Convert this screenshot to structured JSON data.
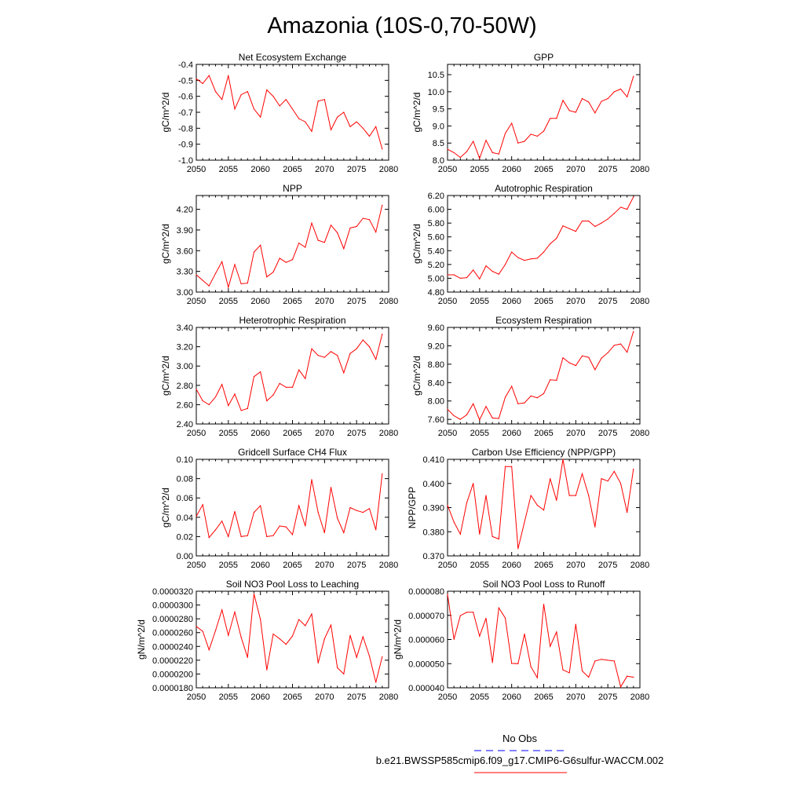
{
  "title": "Amazonia (10S-0,70-50W)",
  "colors": {
    "model_line": "#ff0000",
    "obs_line": "#0000ff",
    "axis": "#000000"
  },
  "legend": {
    "obs_label": "No Obs",
    "model_label": "b.e21.BWSSP585cmip6.f09_g17.CMIP6-G6sulfur-WACCM.002"
  },
  "chart_data": [
    {
      "type": "line",
      "title": "Net Ecosystem Exchange",
      "ylabel": "gC/m^2/d",
      "xlim": [
        2050,
        2080
      ],
      "ylim": [
        -1.0,
        -0.4
      ],
      "xticks": [
        2050,
        2055,
        2060,
        2065,
        2070,
        2075,
        2080
      ],
      "xtick_labels": [
        "2050",
        "2055",
        "2060",
        "2065",
        "2070",
        "2075",
        "2080"
      ],
      "yticks": [
        -1.0,
        -0.9,
        -0.8,
        -0.7,
        -0.6,
        -0.5,
        -0.4
      ],
      "ytick_labels": [
        "-1.0",
        "-0.9",
        "-0.8",
        "-0.7",
        "-0.6",
        "-0.5",
        "-0.4"
      ],
      "x": [
        2050,
        2051,
        2052,
        2053,
        2054,
        2055,
        2056,
        2057,
        2058,
        2059,
        2060,
        2061,
        2062,
        2063,
        2064,
        2065,
        2066,
        2067,
        2068,
        2069,
        2070,
        2071,
        2072,
        2073,
        2074,
        2075,
        2076,
        2077,
        2078,
        2079
      ],
      "values": [
        -0.49,
        -0.52,
        -0.47,
        -0.57,
        -0.62,
        -0.47,
        -0.68,
        -0.59,
        -0.57,
        -0.68,
        -0.73,
        -0.56,
        -0.6,
        -0.66,
        -0.62,
        -0.68,
        -0.74,
        -0.76,
        -0.82,
        -0.63,
        -0.62,
        -0.81,
        -0.73,
        -0.7,
        -0.79,
        -0.76,
        -0.8,
        -0.85,
        -0.79,
        -0.93
      ]
    },
    {
      "type": "line",
      "title": "GPP",
      "ylabel": "gC/m^2/d",
      "xlim": [
        2050,
        2080
      ],
      "ylim": [
        8.0,
        10.8
      ],
      "xticks": [
        2050,
        2055,
        2060,
        2065,
        2070,
        2075,
        2080
      ],
      "xtick_labels": [
        "2050",
        "2055",
        "2060",
        "2065",
        "2070",
        "2075",
        "2080"
      ],
      "yticks": [
        8.0,
        8.5,
        9.0,
        9.5,
        10.0,
        10.5
      ],
      "ytick_labels": [
        "8.0",
        "8.5",
        "9.0",
        "9.5",
        "10.0",
        "10.5"
      ],
      "x": [
        2050,
        2051,
        2052,
        2053,
        2054,
        2055,
        2056,
        2057,
        2058,
        2059,
        2060,
        2061,
        2062,
        2063,
        2064,
        2065,
        2066,
        2067,
        2068,
        2069,
        2070,
        2071,
        2072,
        2073,
        2074,
        2075,
        2076,
        2077,
        2078,
        2079
      ],
      "values": [
        8.32,
        8.22,
        8.08,
        8.25,
        8.55,
        8.05,
        8.58,
        8.22,
        8.18,
        8.78,
        9.08,
        8.5,
        8.55,
        8.76,
        8.7,
        8.85,
        9.22,
        9.22,
        9.75,
        9.45,
        9.4,
        9.8,
        9.7,
        9.38,
        9.72,
        9.8,
        10.0,
        10.08,
        9.85,
        10.45
      ]
    },
    {
      "type": "line",
      "title": "NPP",
      "ylabel": "gC/m^2/d",
      "xlim": [
        2050,
        2080
      ],
      "ylim": [
        3.0,
        4.4
      ],
      "xticks": [
        2050,
        2055,
        2060,
        2065,
        2070,
        2075,
        2080
      ],
      "xtick_labels": [
        "2050",
        "2055",
        "2060",
        "2065",
        "2070",
        "2075",
        "2080"
      ],
      "yticks": [
        3.0,
        3.3,
        3.6,
        3.9,
        4.2
      ],
      "ytick_labels": [
        "3.00",
        "3.30",
        "3.60",
        "3.90",
        "4.20"
      ],
      "x": [
        2050,
        2051,
        2052,
        2053,
        2054,
        2055,
        2056,
        2057,
        2058,
        2059,
        2060,
        2061,
        2062,
        2063,
        2064,
        2065,
        2066,
        2067,
        2068,
        2069,
        2070,
        2071,
        2072,
        2073,
        2074,
        2075,
        2076,
        2077,
        2078,
        2079
      ],
      "values": [
        3.25,
        3.17,
        3.09,
        3.27,
        3.44,
        3.07,
        3.4,
        3.12,
        3.13,
        3.58,
        3.68,
        3.22,
        3.29,
        3.49,
        3.43,
        3.47,
        3.71,
        3.65,
        4.0,
        3.75,
        3.72,
        3.97,
        3.86,
        3.63,
        3.93,
        3.95,
        4.07,
        4.05,
        3.87,
        4.26
      ]
    },
    {
      "type": "line",
      "title": "Autotrophic Respiration",
      "ylabel": "gC/m^2/d",
      "xlim": [
        2050,
        2080
      ],
      "ylim": [
        4.8,
        6.2
      ],
      "xticks": [
        2050,
        2055,
        2060,
        2065,
        2070,
        2075,
        2080
      ],
      "xtick_labels": [
        "2050",
        "2055",
        "2060",
        "2065",
        "2070",
        "2075",
        "2080"
      ],
      "yticks": [
        4.8,
        5.0,
        5.2,
        5.4,
        5.6,
        5.8,
        6.0,
        6.2
      ],
      "ytick_labels": [
        "4.80",
        "5.00",
        "5.20",
        "5.40",
        "5.60",
        "5.80",
        "6.00",
        "6.20"
      ],
      "x": [
        2050,
        2051,
        2052,
        2053,
        2054,
        2055,
        2056,
        2057,
        2058,
        2059,
        2060,
        2061,
        2062,
        2063,
        2064,
        2065,
        2066,
        2067,
        2068,
        2069,
        2070,
        2071,
        2072,
        2073,
        2074,
        2075,
        2076,
        2077,
        2078,
        2079
      ],
      "values": [
        5.05,
        5.05,
        5.0,
        5.01,
        5.12,
        4.99,
        5.18,
        5.1,
        5.06,
        5.2,
        5.38,
        5.3,
        5.26,
        5.28,
        5.29,
        5.38,
        5.5,
        5.58,
        5.76,
        5.72,
        5.68,
        5.83,
        5.83,
        5.75,
        5.8,
        5.86,
        5.94,
        6.03,
        6.0,
        6.18
      ]
    },
    {
      "type": "line",
      "title": "Heterotrophic Respiration",
      "ylabel": "gC/m^2/d",
      "xlim": [
        2050,
        2080
      ],
      "ylim": [
        2.4,
        3.4
      ],
      "xticks": [
        2050,
        2055,
        2060,
        2065,
        2070,
        2075,
        2080
      ],
      "xtick_labels": [
        "2050",
        "2055",
        "2060",
        "2065",
        "2070",
        "2075",
        "2080"
      ],
      "yticks": [
        2.4,
        2.6,
        2.8,
        3.0,
        3.2,
        3.4
      ],
      "ytick_labels": [
        "2.40",
        "2.60",
        "2.80",
        "3.00",
        "3.20",
        "3.40"
      ],
      "x": [
        2050,
        2051,
        2052,
        2053,
        2054,
        2055,
        2056,
        2057,
        2058,
        2059,
        2060,
        2061,
        2062,
        2063,
        2064,
        2065,
        2066,
        2067,
        2068,
        2069,
        2070,
        2071,
        2072,
        2073,
        2074,
        2075,
        2076,
        2077,
        2078,
        2079
      ],
      "values": [
        2.76,
        2.64,
        2.6,
        2.68,
        2.81,
        2.59,
        2.71,
        2.54,
        2.56,
        2.89,
        2.94,
        2.64,
        2.7,
        2.82,
        2.78,
        2.78,
        2.96,
        2.87,
        3.18,
        3.11,
        3.09,
        3.15,
        3.11,
        2.93,
        3.13,
        3.18,
        3.27,
        3.2,
        3.07,
        3.33
      ]
    },
    {
      "type": "line",
      "title": "Ecosystem Respiration",
      "ylabel": "gC/m^2/d",
      "xlim": [
        2050,
        2080
      ],
      "ylim": [
        7.5,
        9.6
      ],
      "xticks": [
        2050,
        2055,
        2060,
        2065,
        2070,
        2075,
        2080
      ],
      "xtick_labels": [
        "2050",
        "2055",
        "2060",
        "2065",
        "2070",
        "2075",
        "2080"
      ],
      "yticks": [
        7.6,
        8.0,
        8.4,
        8.8,
        9.2,
        9.6
      ],
      "ytick_labels": [
        "7.60",
        "8.00",
        "8.40",
        "8.80",
        "9.20",
        "9.60"
      ],
      "x": [
        2050,
        2051,
        2052,
        2053,
        2054,
        2055,
        2056,
        2057,
        2058,
        2059,
        2060,
        2061,
        2062,
        2063,
        2064,
        2065,
        2066,
        2067,
        2068,
        2069,
        2070,
        2071,
        2072,
        2073,
        2074,
        2075,
        2076,
        2077,
        2078,
        2079
      ],
      "values": [
        7.82,
        7.68,
        7.6,
        7.7,
        7.94,
        7.59,
        7.88,
        7.63,
        7.62,
        8.08,
        8.32,
        7.94,
        7.96,
        8.11,
        8.07,
        8.16,
        8.46,
        8.45,
        8.94,
        8.83,
        8.77,
        8.98,
        8.95,
        8.68,
        8.93,
        9.05,
        9.21,
        9.24,
        9.06,
        9.51
      ]
    },
    {
      "type": "line",
      "title": "Gridcell Surface CH4 Flux",
      "ylabel": "gC/m^2/d",
      "xlim": [
        2050,
        2080
      ],
      "ylim": [
        0.0,
        0.1
      ],
      "xticks": [
        2050,
        2055,
        2060,
        2065,
        2070,
        2075,
        2080
      ],
      "xtick_labels": [
        "2050",
        "2055",
        "2060",
        "2065",
        "2070",
        "2075",
        "2080"
      ],
      "yticks": [
        0.0,
        0.02,
        0.04,
        0.06,
        0.08,
        0.1
      ],
      "ytick_labels": [
        "0.00",
        "0.02",
        "0.04",
        "0.06",
        "0.08",
        "0.10"
      ],
      "x": [
        2050,
        2051,
        2052,
        2053,
        2054,
        2055,
        2056,
        2057,
        2058,
        2059,
        2060,
        2061,
        2062,
        2063,
        2064,
        2065,
        2066,
        2067,
        2068,
        2069,
        2070,
        2071,
        2072,
        2073,
        2074,
        2075,
        2076,
        2077,
        2078,
        2079
      ],
      "values": [
        0.041,
        0.053,
        0.019,
        0.027,
        0.036,
        0.02,
        0.046,
        0.02,
        0.021,
        0.045,
        0.052,
        0.02,
        0.021,
        0.031,
        0.03,
        0.022,
        0.052,
        0.031,
        0.079,
        0.045,
        0.024,
        0.071,
        0.039,
        0.024,
        0.05,
        0.047,
        0.045,
        0.049,
        0.027,
        0.085
      ]
    },
    {
      "type": "line",
      "title": "Carbon Use Efficiency (NPP/GPP)",
      "ylabel": "NPP/GPP",
      "xlim": [
        2050,
        2080
      ],
      "ylim": [
        0.37,
        0.41
      ],
      "xticks": [
        2050,
        2055,
        2060,
        2065,
        2070,
        2075,
        2080
      ],
      "xtick_labels": [
        "2050",
        "2055",
        "2060",
        "2065",
        "2070",
        "2075",
        "2080"
      ],
      "yticks": [
        0.37,
        0.38,
        0.39,
        0.4,
        0.41
      ],
      "ytick_labels": [
        "0.370",
        "0.380",
        "0.390",
        "0.400",
        "0.410"
      ],
      "x": [
        2050,
        2051,
        2052,
        2053,
        2054,
        2055,
        2056,
        2057,
        2058,
        2059,
        2060,
        2061,
        2062,
        2063,
        2064,
        2065,
        2066,
        2067,
        2068,
        2069,
        2070,
        2071,
        2072,
        2073,
        2074,
        2075,
        2076,
        2077,
        2078,
        2079
      ],
      "values": [
        0.391,
        0.384,
        0.379,
        0.392,
        0.4,
        0.379,
        0.395,
        0.378,
        0.377,
        0.407,
        0.407,
        0.373,
        0.384,
        0.395,
        0.391,
        0.389,
        0.402,
        0.393,
        0.41,
        0.395,
        0.395,
        0.404,
        0.395,
        0.382,
        0.402,
        0.401,
        0.405,
        0.4,
        0.388,
        0.406
      ]
    },
    {
      "type": "line",
      "title": "Soil NO3 Pool Loss to Leaching",
      "ylabel": "gN/m^2/d",
      "xlim": [
        2050,
        2080
      ],
      "ylim": [
        1.8e-05,
        3.2e-05
      ],
      "xticks": [
        2050,
        2055,
        2060,
        2065,
        2070,
        2075,
        2080
      ],
      "xtick_labels": [
        "2050",
        "2055",
        "2060",
        "2065",
        "2070",
        "2075",
        "2080"
      ],
      "yticks": [
        1.8e-05,
        2e-05,
        2.2e-05,
        2.4e-05,
        2.6e-05,
        2.8e-05,
        3e-05,
        3.2e-05
      ],
      "ytick_labels": [
        "0.0000180",
        "0.0000200",
        "0.0000220",
        "0.0000240",
        "0.0000260",
        "0.0000280",
        "0.0000300",
        "0.0000320"
      ],
      "x": [
        2050,
        2051,
        2052,
        2053,
        2054,
        2055,
        2056,
        2057,
        2058,
        2059,
        2060,
        2061,
        2062,
        2063,
        2064,
        2065,
        2066,
        2067,
        2068,
        2069,
        2070,
        2071,
        2072,
        2073,
        2074,
        2075,
        2076,
        2077,
        2078,
        2079
      ],
      "values": [
        2.69e-05,
        2.62e-05,
        2.35e-05,
        2.63e-05,
        2.93e-05,
        2.56e-05,
        2.9e-05,
        2.53e-05,
        2.24e-05,
        3.16e-05,
        2.79e-05,
        2.06e-05,
        2.58e-05,
        2.51e-05,
        2.43e-05,
        2.55e-05,
        2.79e-05,
        2.7e-05,
        2.87e-05,
        2.16e-05,
        2.51e-05,
        2.71e-05,
        2.09e-05,
        2e-05,
        2.56e-05,
        2.24e-05,
        2.54e-05,
        2.26e-05,
        1.88e-05,
        2.25e-05
      ]
    },
    {
      "type": "line",
      "title": "Soil NO3 Pool Loss to Runoff",
      "ylabel": "gN/m^2/d",
      "xlim": [
        2050,
        2080
      ],
      "ylim": [
        4e-05,
        8e-05
      ],
      "xticks": [
        2050,
        2055,
        2060,
        2065,
        2070,
        2075,
        2080
      ],
      "xtick_labels": [
        "2050",
        "2055",
        "2060",
        "2065",
        "2070",
        "2075",
        "2080"
      ],
      "yticks": [
        4e-05,
        5e-05,
        6e-05,
        7e-05,
        8e-05
      ],
      "ytick_labels": [
        "0.000040",
        "0.000050",
        "0.000060",
        "0.000070",
        "0.000080"
      ],
      "x": [
        2050,
        2051,
        2052,
        2053,
        2054,
        2055,
        2056,
        2057,
        2058,
        2059,
        2060,
        2061,
        2062,
        2063,
        2064,
        2065,
        2066,
        2067,
        2068,
        2069,
        2070,
        2071,
        2072,
        2073,
        2074,
        2075,
        2076,
        2077,
        2078,
        2079
      ],
      "values": [
        7.88e-05,
        6.01e-05,
        6.99e-05,
        7.13e-05,
        7.13e-05,
        6.14e-05,
        6.88e-05,
        5.05e-05,
        7.31e-05,
        6.89e-05,
        5.01e-05,
        5e-05,
        6.23e-05,
        4.87e-05,
        4.42e-05,
        7.46e-05,
        5.72e-05,
        6.31e-05,
        4.74e-05,
        4.62e-05,
        6.63e-05,
        4.7e-05,
        4.44e-05,
        5.11e-05,
        5.18e-05,
        5.14e-05,
        5.11e-05,
        4.04e-05,
        4.48e-05,
        4.44e-05
      ]
    }
  ]
}
